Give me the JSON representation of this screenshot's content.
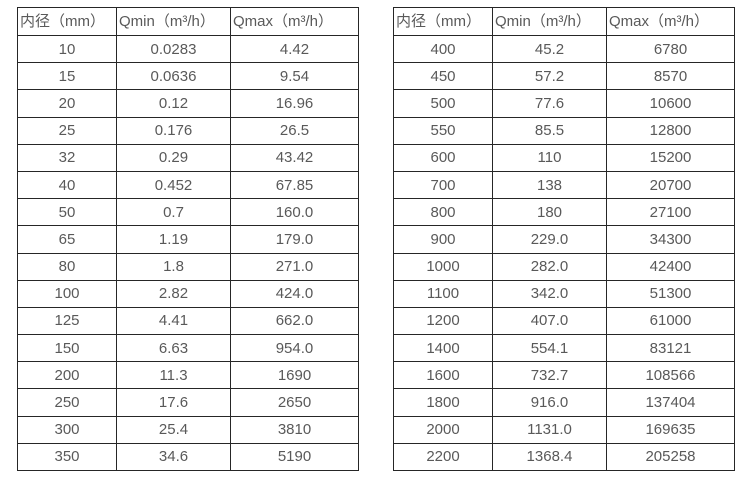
{
  "colors": {
    "border": "#262626",
    "text": "#595959",
    "background": "#ffffff"
  },
  "left_table": {
    "headers": [
      "内径（mm）",
      "Qmin（m³/h）",
      "Qmax（m³/h）"
    ],
    "rows": [
      [
        "10",
        "0.0283",
        "4.42"
      ],
      [
        "15",
        "0.0636",
        "9.54"
      ],
      [
        "20",
        "0.12",
        "16.96"
      ],
      [
        "25",
        "0.176",
        "26.5"
      ],
      [
        "32",
        "0.29",
        "43.42"
      ],
      [
        "40",
        "0.452",
        "67.85"
      ],
      [
        "50",
        "0.7",
        "160.0"
      ],
      [
        "65",
        "1.19",
        "179.0"
      ],
      [
        "80",
        "1.8",
        "271.0"
      ],
      [
        "100",
        "2.82",
        "424.0"
      ],
      [
        "125",
        "4.41",
        "662.0"
      ],
      [
        "150",
        "6.63",
        "954.0"
      ],
      [
        "200",
        "11.3",
        "1690"
      ],
      [
        "250",
        "17.6",
        "2650"
      ],
      [
        "300",
        "25.4",
        "3810"
      ],
      [
        "350",
        "34.6",
        "5190"
      ]
    ]
  },
  "right_table": {
    "headers": [
      "内径（mm）",
      "Qmin（m³/h）",
      "Qmax（m³/h）"
    ],
    "rows": [
      [
        "400",
        "45.2",
        "6780"
      ],
      [
        "450",
        "57.2",
        "8570"
      ],
      [
        "500",
        "77.6",
        "10600"
      ],
      [
        "550",
        "85.5",
        "12800"
      ],
      [
        "600",
        "110",
        "15200"
      ],
      [
        "700",
        "138",
        "20700"
      ],
      [
        "800",
        "180",
        "27100"
      ],
      [
        "900",
        "229.0",
        "34300"
      ],
      [
        "1000",
        "282.0",
        "42400"
      ],
      [
        "1100",
        "342.0",
        "51300"
      ],
      [
        "1200",
        "407.0",
        "61000"
      ],
      [
        "1400",
        "554.1",
        "83121"
      ],
      [
        "1600",
        "732.7",
        "108566"
      ],
      [
        "1800",
        "916.0",
        "137404"
      ],
      [
        "2000",
        "1131.0",
        "169635"
      ],
      [
        "2200",
        "1368.4",
        "205258"
      ]
    ]
  }
}
